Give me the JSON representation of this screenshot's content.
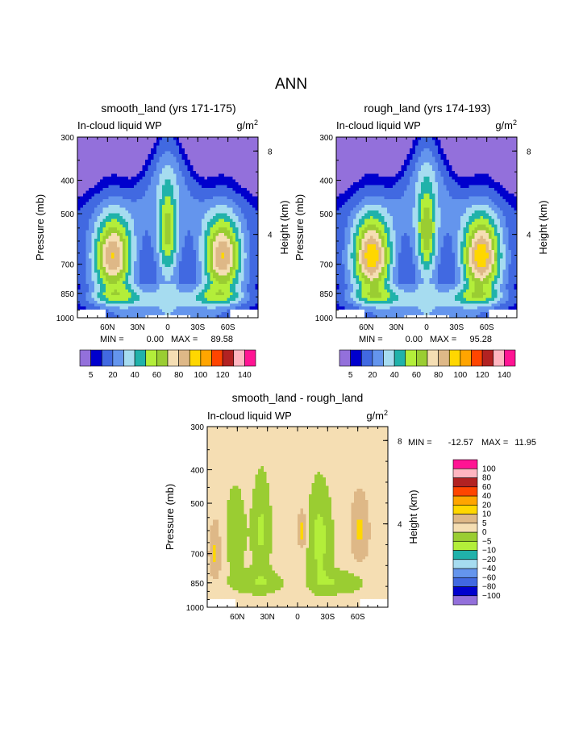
{
  "figure": {
    "season": "ANN"
  },
  "colors": {
    "abs_palette": [
      "#9370db",
      "#0000cd",
      "#4169e1",
      "#6495ed",
      "#a6dcf0",
      "#20b2aa",
      "#b3ee3a",
      "#9acd32",
      "#f5deb3",
      "#deb887",
      "#ffd700",
      "#ffa500",
      "#ff4500",
      "#b22222",
      "#ffb6c1",
      "#ff1493"
    ],
    "diff_palette": [
      "#9370db",
      "#0000cd",
      "#4169e1",
      "#6495ed",
      "#a6dcf0",
      "#20b2aa",
      "#b3ee3a",
      "#9acd32",
      "#f5deb3",
      "#deb887",
      "#ffd700",
      "#ffa500",
      "#ff4500",
      "#b22222",
      "#ffb6c1",
      "#ff1493"
    ]
  },
  "chart_data": [
    {
      "type": "heatmap",
      "title": "smooth_land (yrs 171-175)",
      "variable": "In-cloud liquid WP",
      "units": "g/m",
      "units_sup": "2",
      "ylabel": "Pressure (mb)",
      "ylabel_right": "Height (km)",
      "min_label": "MIN =",
      "min_value": "0.00",
      "max_label": "MAX =",
      "max_value": "89.58",
      "min": 0.0,
      "max": 89.58,
      "y_ticks": [
        "300",
        "400",
        "500",
        "700",
        "850",
        "1000"
      ],
      "y_ticks_right": [
        "8",
        "4"
      ],
      "x_ticks": [
        "60N",
        "30N",
        "0",
        "30S",
        "60S"
      ],
      "ylim": [
        1000,
        300
      ],
      "xlim": [
        90,
        -90
      ],
      "colorbar_labels": [
        "5",
        "20",
        "40",
        "60",
        "80",
        "100",
        "120",
        "140"
      ],
      "contour_levels": [
        5,
        10,
        20,
        30,
        40,
        50,
        60,
        70,
        80,
        90,
        100,
        110,
        120,
        130,
        140
      ]
    },
    {
      "type": "heatmap",
      "title": "rough_land (yrs 174-193)",
      "variable": "In-cloud liquid WP",
      "units": "g/m",
      "units_sup": "2",
      "ylabel": "Pressure (mb)",
      "ylabel_right": "Height (km)",
      "min_label": "MIN =",
      "min_value": "0.00",
      "max_label": "MAX =",
      "max_value": "95.28",
      "min": 0.0,
      "max": 95.28,
      "y_ticks": [
        "300",
        "400",
        "500",
        "700",
        "850",
        "1000"
      ],
      "y_ticks_right": [
        "8",
        "4"
      ],
      "x_ticks": [
        "60N",
        "30N",
        "0",
        "30S",
        "60S"
      ],
      "ylim": [
        1000,
        300
      ],
      "xlim": [
        90,
        -90
      ],
      "colorbar_labels": [
        "5",
        "20",
        "40",
        "60",
        "80",
        "100",
        "120",
        "140"
      ],
      "contour_levels": [
        5,
        10,
        20,
        30,
        40,
        50,
        60,
        70,
        80,
        90,
        100,
        110,
        120,
        130,
        140
      ]
    },
    {
      "type": "heatmap",
      "title": "smooth_land - rough_land",
      "variable": "In-cloud liquid WP",
      "units": "g/m",
      "units_sup": "2",
      "ylabel": "Pressure (mb)",
      "ylabel_right": "Height (km)",
      "min_label": "MIN =",
      "min_value": "-12.57",
      "max_label": "MAX =",
      "max_value": "11.95",
      "min": -12.57,
      "max": 11.95,
      "y_ticks": [
        "300",
        "400",
        "500",
        "700",
        "850",
        "1000"
      ],
      "y_ticks_right": [
        "8",
        "4"
      ],
      "x_ticks": [
        "60N",
        "30N",
        "0",
        "30S",
        "60S"
      ],
      "ylim": [
        1000,
        300
      ],
      "xlim": [
        90,
        -90
      ],
      "colorbar_labels": [
        "100",
        "80",
        "60",
        "40",
        "20",
        "10",
        "5",
        "0",
        "−5",
        "−10",
        "−20",
        "−40",
        "−60",
        "−80",
        "−100"
      ]
    }
  ]
}
